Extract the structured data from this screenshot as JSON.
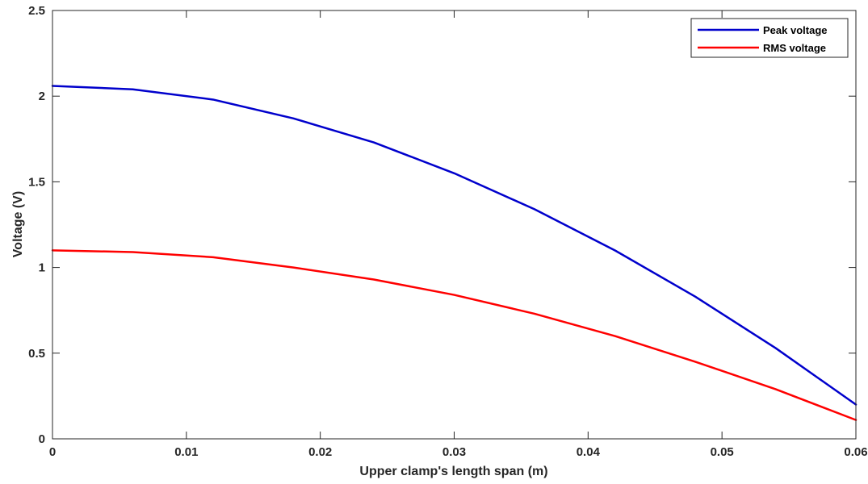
{
  "chart_data": {
    "type": "line",
    "title": "",
    "xlabel": "Upper clamp's length span (m)",
    "ylabel": "Voltage (V)",
    "xlim": [
      0,
      0.06
    ],
    "ylim": [
      0,
      2.5
    ],
    "x_ticks": [
      "0",
      "0.01",
      "0.02",
      "0.03",
      "0.04",
      "0.05",
      "0.06"
    ],
    "y_ticks": [
      "0",
      "0.5",
      "1",
      "1.5",
      "2",
      "2.5"
    ],
    "grid": false,
    "legend_position": "top-right",
    "x": [
      0,
      0.006,
      0.012,
      0.018,
      0.024,
      0.03,
      0.036,
      0.042,
      0.048,
      0.054,
      0.06
    ],
    "series": [
      {
        "name": "Peak voltage",
        "color": "#0000cc",
        "values": [
          2.06,
          2.04,
          1.98,
          1.87,
          1.73,
          1.55,
          1.34,
          1.1,
          0.83,
          0.53,
          0.2
        ]
      },
      {
        "name": "RMS voltage",
        "color": "#ff0000",
        "values": [
          1.1,
          1.09,
          1.06,
          1.0,
          0.93,
          0.84,
          0.73,
          0.6,
          0.45,
          0.29,
          0.11
        ]
      }
    ]
  }
}
